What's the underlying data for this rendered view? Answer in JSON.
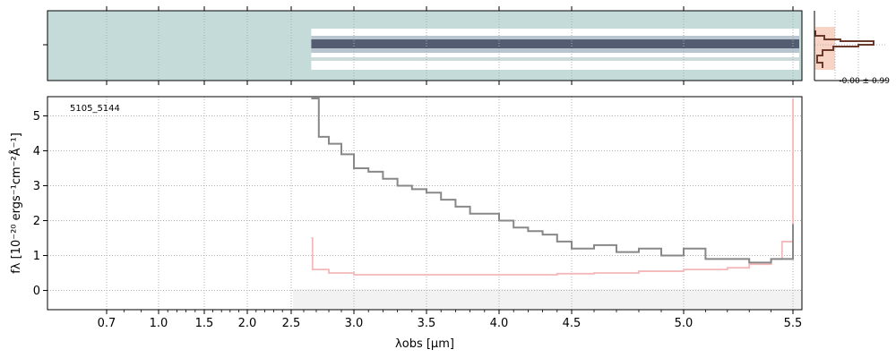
{
  "chart_data": {
    "type": "line",
    "id_label": "5105_5144",
    "xlabel": "λobs [μm]",
    "ylabel": "fλ [10⁻²⁰ ergs⁻¹cm⁻²Å⁻¹]",
    "ylim": [
      -0.55,
      5.55
    ],
    "x_ticks": [
      "0.7",
      "1.0",
      "1.5",
      "2.0",
      "2.5",
      "3.0",
      "3.5",
      "4.0",
      "4.5",
      "5.0",
      "5.5"
    ],
    "y_ticks": [
      "0",
      "1",
      "2",
      "3",
      "4",
      "5"
    ],
    "x_tick_values": [
      0.7,
      1.0,
      1.5,
      2.0,
      2.5,
      3.0,
      3.5,
      4.0,
      4.5,
      5.0,
      5.5
    ],
    "grid": true,
    "series": [
      {
        "role": "flux",
        "color": "#888888",
        "x": [
          2.66,
          2.72,
          2.8,
          2.9,
          3.0,
          3.1,
          3.2,
          3.3,
          3.4,
          3.5,
          3.6,
          3.7,
          3.8,
          3.9,
          4.0,
          4.1,
          4.2,
          4.3,
          4.4,
          4.5,
          4.6,
          4.7,
          4.8,
          4.9,
          5.0,
          5.1,
          5.2,
          5.3,
          5.4,
          5.5
        ],
        "y": [
          5.5,
          4.4,
          4.2,
          3.9,
          3.5,
          3.4,
          3.2,
          3.0,
          2.9,
          2.8,
          2.6,
          2.4,
          2.2,
          2.2,
          2.0,
          1.8,
          1.7,
          1.6,
          1.4,
          1.2,
          1.3,
          1.1,
          1.2,
          1.0,
          1.2,
          0.9,
          0.9,
          0.8,
          0.9,
          1.9
        ]
      },
      {
        "role": "error",
        "color": "#f4b8b8",
        "x": [
          2.66,
          2.67,
          2.8,
          3.0,
          3.2,
          3.4,
          3.6,
          3.8,
          4.0,
          4.2,
          4.4,
          4.6,
          4.8,
          5.0,
          5.2,
          5.3,
          5.4,
          5.45,
          5.5
        ],
        "y": [
          1.5,
          0.6,
          0.5,
          0.45,
          0.45,
          0.45,
          0.45,
          0.45,
          0.45,
          0.45,
          0.48,
          0.5,
          0.55,
          0.6,
          0.65,
          0.75,
          0.9,
          1.4,
          5.5
        ]
      }
    ],
    "side_panel": {
      "label": "-0.00 ± 0.99"
    }
  },
  "colors": {
    "flux": "#888888",
    "error": "#f4b8b8",
    "twod_bg": "#c5dbd9",
    "twod_trace": "#1a2540",
    "grid": "#b0b0b0",
    "profile": "#6b3a2a",
    "profile_fill": "#f6c9b8"
  }
}
